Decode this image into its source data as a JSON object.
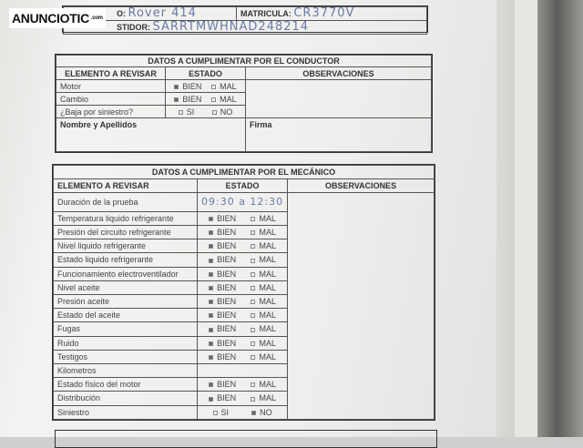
{
  "logo": {
    "text": "ANUNCIOTIC",
    "suffix": ".com"
  },
  "header": {
    "modelo_label": "O:",
    "modelo_value": "Rover 414",
    "matricula_label": "MATRICULA:",
    "matricula_value": "CR3770V",
    "bastidor_label": "STIDOR:",
    "bastidor_value": "SARRTMWHNAD248214"
  },
  "conductor": {
    "title": "DATOS A CUMPLIMENTAR POR EL CONDUCTOR",
    "col_elemento": "ELEMENTO A REVISAR",
    "col_estado": "ESTADO",
    "col_obs": "OBSERVACIONES",
    "rows": [
      {
        "label": "Motor",
        "opt1": "BIEN",
        "opt2": "MAL",
        "checked": 1
      },
      {
        "label": "Cambio",
        "opt1": "BIEN",
        "opt2": "MAL",
        "checked": 1
      },
      {
        "label": "¿Baja por siniestro?",
        "opt1": "SI",
        "opt2": "NO",
        "checked": 0
      }
    ],
    "nombre": "Nombre y Apellidos",
    "firma": "Firma"
  },
  "mecanico": {
    "title": "DATOS A CUMPLIMENTAR POR EL MECÁNICO",
    "col_elemento": "ELEMENTO A REVISAR",
    "col_estado": "ESTADO",
    "col_obs": "OBSERVACIONES",
    "duracion_label": "Duración de la prueba",
    "duracion_value": "09:30 a 12:30",
    "rows": [
      {
        "label": "Temperatura liquido refrigerante",
        "opt1": "BIEN",
        "opt2": "MAL",
        "checked": 1
      },
      {
        "label": "Presión del circuito refrigerante",
        "opt1": "BIEN",
        "opt2": "MAL",
        "checked": 1
      },
      {
        "label": "Nivel liquido refrigerante",
        "opt1": "BIEN",
        "opt2": "MAL",
        "checked": 1
      },
      {
        "label": "Estado liquido refrigerante",
        "opt1": "BIEN",
        "opt2": "MAL",
        "checked": 1
      },
      {
        "label": "Funcionamiento electroventilador",
        "opt1": "BIEN",
        "opt2": "MAL",
        "checked": 1
      },
      {
        "label": "Nivel aceite",
        "opt1": "BIEN",
        "opt2": "MAL",
        "checked": 1
      },
      {
        "label": "Presión aceite",
        "opt1": "BIEN",
        "opt2": "MAL",
        "checked": 1
      },
      {
        "label": "Estado del aceite",
        "opt1": "BIEN",
        "opt2": "MAL",
        "checked": 1
      },
      {
        "label": "Fugas",
        "opt1": "BIEN",
        "opt2": "MAL",
        "checked": 1
      },
      {
        "label": "Ruido",
        "opt1": "BIEN",
        "opt2": "MAL",
        "checked": 1
      },
      {
        "label": "Testigos",
        "opt1": "BIEN",
        "opt2": "MAL",
        "checked": 1
      }
    ],
    "kilometros": "Kilometros",
    "rows2": [
      {
        "label": "Estado físico del motor",
        "opt1": "BIEN",
        "opt2": "MAL",
        "checked": 1
      },
      {
        "label": "Distribución",
        "opt1": "BIEN",
        "opt2": "MAL",
        "checked": 1
      },
      {
        "label": "Siniestro",
        "opt1": "SI",
        "opt2": "NO",
        "checked": 2
      }
    ]
  }
}
